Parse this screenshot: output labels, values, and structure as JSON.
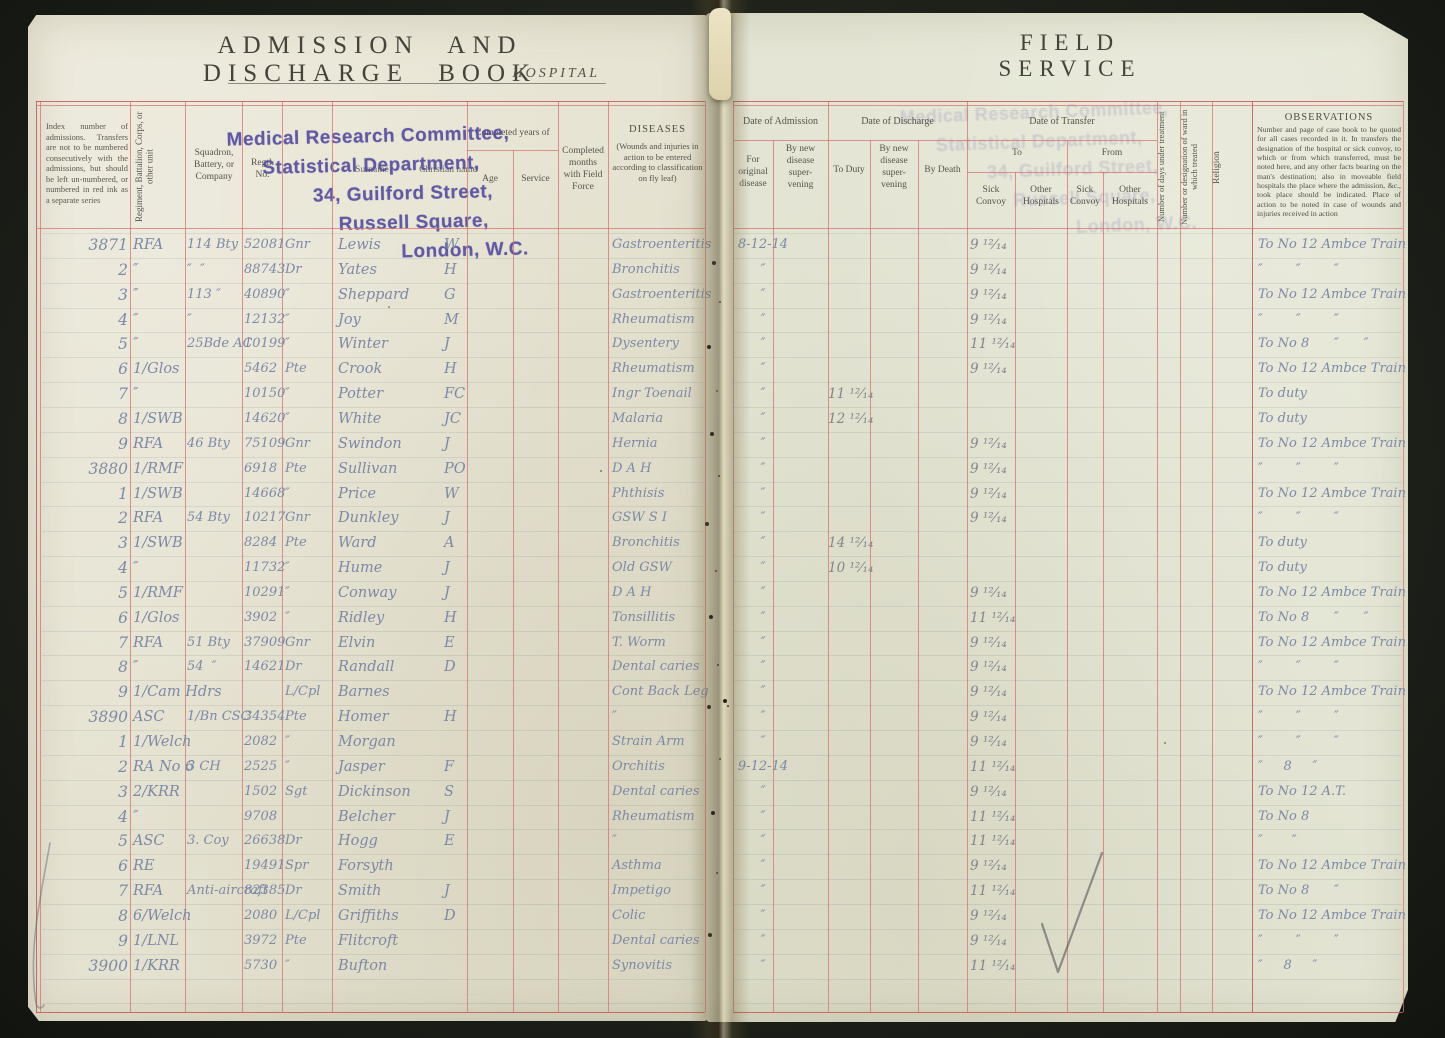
{
  "page": {
    "left_title": "ADMISSION AND DISCHARGE BOOK",
    "hospital_label": "HOSPITAL",
    "right_title": "FIELD SERVICE"
  },
  "stamp": {
    "lines": [
      "Medical Research Committee,",
      "Statistical Department,",
      "34, Guilford Street,",
      "Russell Square,",
      "London, W.C."
    ]
  },
  "columns": {
    "index_note": "Index number of admissions.  Transfers are not to be numbered consecutively with the admissions, but should be left un-numbered, or numbered in red ink as a separate series",
    "regiment": "Regiment, Battalion, Corps, or other unit",
    "squadron": "Squadron, Battery, or Company",
    "regtl_no": "Regtl. No.",
    "surname": "Surname",
    "christian_name": "Christian name",
    "completed_years": "Completed years of",
    "age": "Age",
    "service": "Service",
    "completed_months": "Completed months with Field Force",
    "diseases_title": "DISEASES",
    "diseases_note": "(Wounds and injuries in action to be entered according to classification on fly leaf)",
    "date_admission": "Date of Admission",
    "adm_original": "For original disease",
    "by_new_disease": "By new disease super- vening",
    "date_discharge": "Date of Discharge",
    "to_duty": "To Duty",
    "by_death": "By Death",
    "date_transfer": "Date of Transfer",
    "to": "To",
    "from": "From",
    "sick_convoy": "Sick Convoy",
    "other_hospitals": "Other Hospitals",
    "days_under_treatment": "Number of days under treatment",
    "ward": "Number or designation of ward in which treated",
    "religion": "Religion",
    "observations_title": "OBSERVATIONS",
    "observations_note": "Number and page of case book to be quoted for all cases recorded in it.  In transfers the designation of the hospital or sick convoy, to which or from which transferred, must be noted here, and any other facts bearing on the man's destination; also in moveable field hospitals the place where the admission, &c., took place should be indicated.  Place of action to be noted in case of wounds and injuries received in action"
  },
  "accent_colors": {
    "rule_red": "#d2746e",
    "ink_blue": "#7e89a6",
    "stamp_purple": "#544a9e",
    "paper": "#e6e3d2"
  },
  "rows": [
    {
      "index": "3871",
      "regiment": "RFA",
      "squadron": "114 Bty",
      "regtl_no": "52081",
      "rank": "Gnr",
      "surname": "Lewis",
      "initial": "W",
      "disease": "Gastroenteritis",
      "admission": "8-12-14",
      "to_duty": "",
      "sick_convoy": "9 ¹²⁄₁₄",
      "observations": "To No 12 Ambce Train"
    },
    {
      "index": "2",
      "regiment": "″",
      "squadron": "″  ″",
      "regtl_no": "88743",
      "rank": "Dr",
      "surname": "Yates",
      "initial": "H",
      "disease": "Bronchitis",
      "admission": "″",
      "to_duty": "",
      "sick_convoy": "9 ¹²⁄₁₄",
      "observations": "″        ″        ″"
    },
    {
      "index": "3",
      "regiment": "″",
      "squadron": "113 ″",
      "regtl_no": "40890",
      "rank": "″",
      "surname": "Sheppard",
      "initial": "G",
      "disease": "Gastroenteritis",
      "admission": "″",
      "to_duty": "",
      "sick_convoy": "9 ¹²⁄₁₄",
      "observations": "To No 12 Ambce Train"
    },
    {
      "index": "4",
      "regiment": "″",
      "squadron": "″",
      "regtl_no": "12132",
      "rank": "″",
      "surname": "Joy",
      "initial": "M",
      "disease": "Rheumatism",
      "admission": "″",
      "to_duty": "",
      "sick_convoy": "9 ¹²⁄₁₄",
      "observations": "″        ″        ″"
    },
    {
      "index": "5",
      "regiment": "″",
      "squadron": "25Bde AC",
      "regtl_no": "10199",
      "rank": "″",
      "surname": "Winter",
      "initial": "J",
      "disease": "Dysentery",
      "admission": "″",
      "to_duty": "",
      "sick_convoy": "11 ¹²⁄₁₄",
      "observations": "To No 8      ″      ″"
    },
    {
      "index": "6",
      "regiment": "1/Glos",
      "squadron": "",
      "regtl_no": "5462",
      "rank": "Pte",
      "surname": "Crook",
      "initial": "H",
      "disease": "Rheumatism",
      "admission": "″",
      "to_duty": "",
      "sick_convoy": "9 ¹²⁄₁₄",
      "observations": "To No 12 Ambce Train"
    },
    {
      "index": "7",
      "regiment": "″",
      "squadron": "",
      "regtl_no": "10150",
      "rank": "″",
      "surname": "Potter",
      "initial": "FC",
      "disease": "Ingr Toenail",
      "admission": "″",
      "to_duty": "11 ¹²⁄₁₄",
      "sick_convoy": "",
      "observations": "To duty"
    },
    {
      "index": "8",
      "regiment": "1/SWB",
      "squadron": "",
      "regtl_no": "14620",
      "rank": "″",
      "surname": "White",
      "initial": "JC",
      "disease": "Malaria",
      "admission": "″",
      "to_duty": "12 ¹²⁄₁₄",
      "sick_convoy": "",
      "observations": "To duty"
    },
    {
      "index": "9",
      "regiment": "RFA",
      "squadron": "46 Bty",
      "regtl_no": "75109",
      "rank": "Gnr",
      "surname": "Swindon",
      "initial": "J",
      "disease": "Hernia",
      "admission": "″",
      "to_duty": "",
      "sick_convoy": "9 ¹²⁄₁₄",
      "observations": "To No 12 Ambce Train"
    },
    {
      "index": "3880",
      "regiment": "1/RMF",
      "squadron": "",
      "regtl_no": "6918",
      "rank": "Pte",
      "surname": "Sullivan",
      "initial": "PO",
      "disease": "D A H",
      "admission": "″",
      "to_duty": "",
      "sick_convoy": "9 ¹²⁄₁₄",
      "observations": "″        ″        ″"
    },
    {
      "index": "1",
      "regiment": "1/SWB",
      "squadron": "",
      "regtl_no": "14668",
      "rank": "″",
      "surname": "Price",
      "initial": "W",
      "disease": "Phthisis",
      "admission": "″",
      "to_duty": "",
      "sick_convoy": "9 ¹²⁄₁₄",
      "observations": "To No 12 Ambce Train"
    },
    {
      "index": "2",
      "regiment": "RFA",
      "squadron": "54 Bty",
      "regtl_no": "10217",
      "rank": "Gnr",
      "surname": "Dunkley",
      "initial": "J",
      "disease": "GSW S I",
      "admission": "″",
      "to_duty": "",
      "sick_convoy": "9 ¹²⁄₁₄",
      "observations": "″        ″        ″"
    },
    {
      "index": "3",
      "regiment": "1/SWB",
      "squadron": "",
      "regtl_no": "8284",
      "rank": "Pte",
      "surname": "Ward",
      "initial": "A",
      "disease": "Bronchitis",
      "admission": "″",
      "to_duty": "14 ¹²⁄₁₄",
      "sick_convoy": "",
      "observations": "To duty"
    },
    {
      "index": "4",
      "regiment": "″",
      "squadron": "",
      "regtl_no": "11732",
      "rank": "″",
      "surname": "Hume",
      "initial": "J",
      "disease": "Old GSW",
      "admission": "″",
      "to_duty": "10 ¹²⁄₁₄",
      "sick_convoy": "",
      "observations": "To duty"
    },
    {
      "index": "5",
      "regiment": "1/RMF",
      "squadron": "",
      "regtl_no": "10291",
      "rank": "″",
      "surname": "Conway",
      "initial": "J",
      "disease": "D A H",
      "admission": "″",
      "to_duty": "",
      "sick_convoy": "9 ¹²⁄₁₄",
      "observations": "To No 12 Ambce Train"
    },
    {
      "index": "6",
      "regiment": "1/Glos",
      "squadron": "",
      "regtl_no": "3902",
      "rank": "″",
      "surname": "Ridley",
      "initial": "H",
      "disease": "Tonsillitis",
      "admission": "″",
      "to_duty": "",
      "sick_convoy": "11 ¹²⁄₁₄",
      "observations": "To No 8      ″      ″"
    },
    {
      "index": "7",
      "regiment": "RFA",
      "squadron": "51 Bty",
      "regtl_no": "37909",
      "rank": "Gnr",
      "surname": "Elvin",
      "initial": "E",
      "disease": "T. Worm",
      "admission": "″",
      "to_duty": "",
      "sick_convoy": "9 ¹²⁄₁₄",
      "observations": "To No 12 Ambce Train"
    },
    {
      "index": "8",
      "regiment": "″",
      "squadron": "54  ″",
      "regtl_no": "14621",
      "rank": "Dr",
      "surname": "Randall",
      "initial": "D",
      "disease": "Dental caries",
      "admission": "″",
      "to_duty": "",
      "sick_convoy": "9 ¹²⁄₁₄",
      "observations": "″        ″        ″"
    },
    {
      "index": "9",
      "regiment": "1/Cam Hdrs",
      "squadron": "",
      "regtl_no": "",
      "rank": "L/Cpl",
      "surname": "Barnes",
      "initial": "",
      "disease": "Cont Back Leg",
      "admission": "″",
      "to_duty": "",
      "sick_convoy": "9 ¹²⁄₁₄",
      "observations": "To No 12 Ambce Train"
    },
    {
      "index": "3890",
      "regiment": "ASC",
      "squadron": "1/Bn CSC",
      "regtl_no": "34354",
      "rank": "Pte",
      "surname": "Homer",
      "initial": "H",
      "disease": "″",
      "admission": "″",
      "to_duty": "",
      "sick_convoy": "9 ¹²⁄₁₄",
      "observations": "″        ″        ″"
    },
    {
      "index": "1",
      "regiment": "1/Welch",
      "squadron": "",
      "regtl_no": "2082",
      "rank": "″",
      "surname": "Morgan",
      "initial": "",
      "disease": "Strain Arm",
      "admission": "″",
      "to_duty": "",
      "sick_convoy": "9 ¹²⁄₁₄",
      "observations": "″        ″        ″"
    },
    {
      "index": "2",
      "regiment": "RA No 6",
      "squadron": "3 CH",
      "regtl_no": "2525",
      "rank": "″",
      "surname": "Jasper",
      "initial": "F",
      "disease": "Orchitis",
      "admission": "9-12-14",
      "to_duty": "",
      "sick_convoy": "11 ¹²⁄₁₄",
      "observations": "″     8     ″"
    },
    {
      "index": "3",
      "regiment": "2/KRR",
      "squadron": "",
      "regtl_no": "1502",
      "rank": "Sgt",
      "surname": "Dickinson",
      "initial": "S",
      "disease": "Dental caries",
      "admission": "″",
      "to_duty": "",
      "sick_convoy": "9 ¹²⁄₁₄",
      "observations": "To No 12 A.T."
    },
    {
      "index": "4",
      "regiment": "″",
      "squadron": "",
      "regtl_no": "9708",
      "rank": "",
      "surname": "Belcher",
      "initial": "J",
      "disease": "Rheumatism",
      "admission": "″",
      "to_duty": "",
      "sick_convoy": "11 ¹²⁄₁₄",
      "observations": "To No 8"
    },
    {
      "index": "5",
      "regiment": "ASC",
      "squadron": "3. Coy",
      "regtl_no": "26638",
      "rank": "Dr",
      "surname": "Hogg",
      "initial": "E",
      "disease": "″",
      "admission": "″",
      "to_duty": "",
      "sick_convoy": "11 ¹²⁄₁₄",
      "observations": "″       ″"
    },
    {
      "index": "6",
      "regiment": "RE",
      "squadron": "",
      "regtl_no": "19491",
      "rank": "Spr",
      "surname": "Forsyth",
      "initial": "",
      "disease": "Asthma",
      "admission": "″",
      "to_duty": "",
      "sick_convoy": "9 ¹²⁄₁₄",
      "observations": "To No 12 Ambce Train"
    },
    {
      "index": "7",
      "regiment": "RFA",
      "squadron": "Anti-aircraft",
      "regtl_no": "82385",
      "rank": "Dr",
      "surname": "Smith",
      "initial": "J",
      "disease": "Impetigo",
      "admission": "″",
      "to_duty": "",
      "sick_convoy": "11 ¹²⁄₁₄",
      "observations": "To No 8      ″"
    },
    {
      "index": "8",
      "regiment": "6/Welch",
      "squadron": "",
      "regtl_no": "2080",
      "rank": "L/Cpl",
      "surname": "Griffiths",
      "initial": "D",
      "disease": "Colic",
      "admission": "″",
      "to_duty": "",
      "sick_convoy": "9 ¹²⁄₁₄",
      "observations": "To No 12 Ambce Train"
    },
    {
      "index": "9",
      "regiment": "1/LNL",
      "squadron": "",
      "regtl_no": "3972",
      "rank": "Pte",
      "surname": "Flitcroft",
      "initial": "",
      "disease": "Dental caries",
      "admission": "″",
      "to_duty": "",
      "sick_convoy": "9 ¹²⁄₁₄",
      "observations": "″        ″        ″"
    },
    {
      "index": "3900",
      "regiment": "1/KRR",
      "squadron": "",
      "regtl_no": "5730",
      "rank": "″",
      "surname": "Bufton",
      "initial": "",
      "disease": "Synovitis",
      "admission": "″",
      "to_duty": "",
      "sick_convoy": "11 ¹²⁄₁₄",
      "observations": "″     8     ″"
    }
  ]
}
